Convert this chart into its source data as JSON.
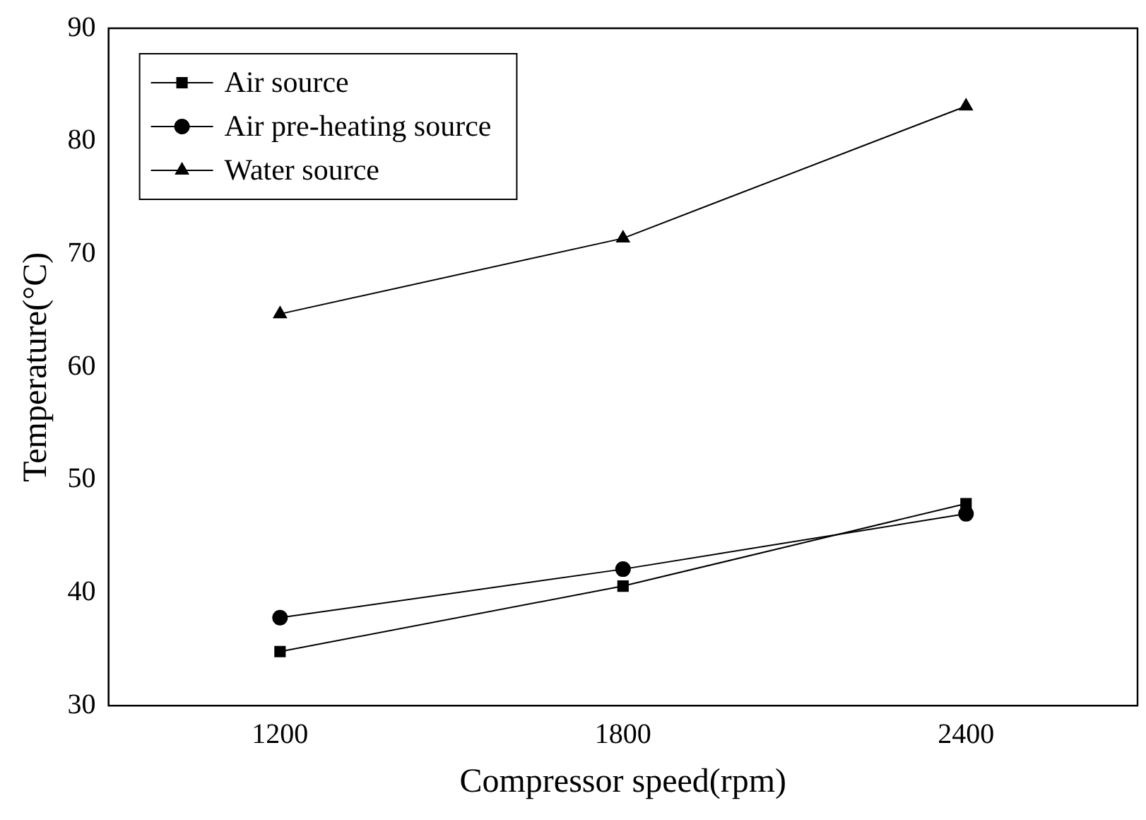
{
  "chart_data": {
    "type": "line",
    "xlabel": "Compressor speed(rpm)",
    "ylabel": "Temperature(°C)",
    "x": [
      1200,
      1800,
      2400
    ],
    "xlim": [
      900,
      2700
    ],
    "xticks": [
      1200,
      1800,
      2400
    ],
    "ylim": [
      30,
      90
    ],
    "yticks": [
      30,
      40,
      50,
      60,
      70,
      80,
      90
    ],
    "grid": false,
    "legend": "top left",
    "line_style": "solid",
    "series": [
      {
        "name": "Air source",
        "color": "#000000",
        "marker": "square",
        "values": [
          34.8,
          40.6,
          47.9
        ]
      },
      {
        "name": "Air pre-heating source",
        "color": "#000000",
        "marker": "circle",
        "values": [
          37.8,
          42.1,
          47.0
        ]
      },
      {
        "name": "Water source",
        "color": "#000000",
        "marker": "triangle",
        "values": [
          64.7,
          71.4,
          83.1
        ]
      }
    ]
  }
}
